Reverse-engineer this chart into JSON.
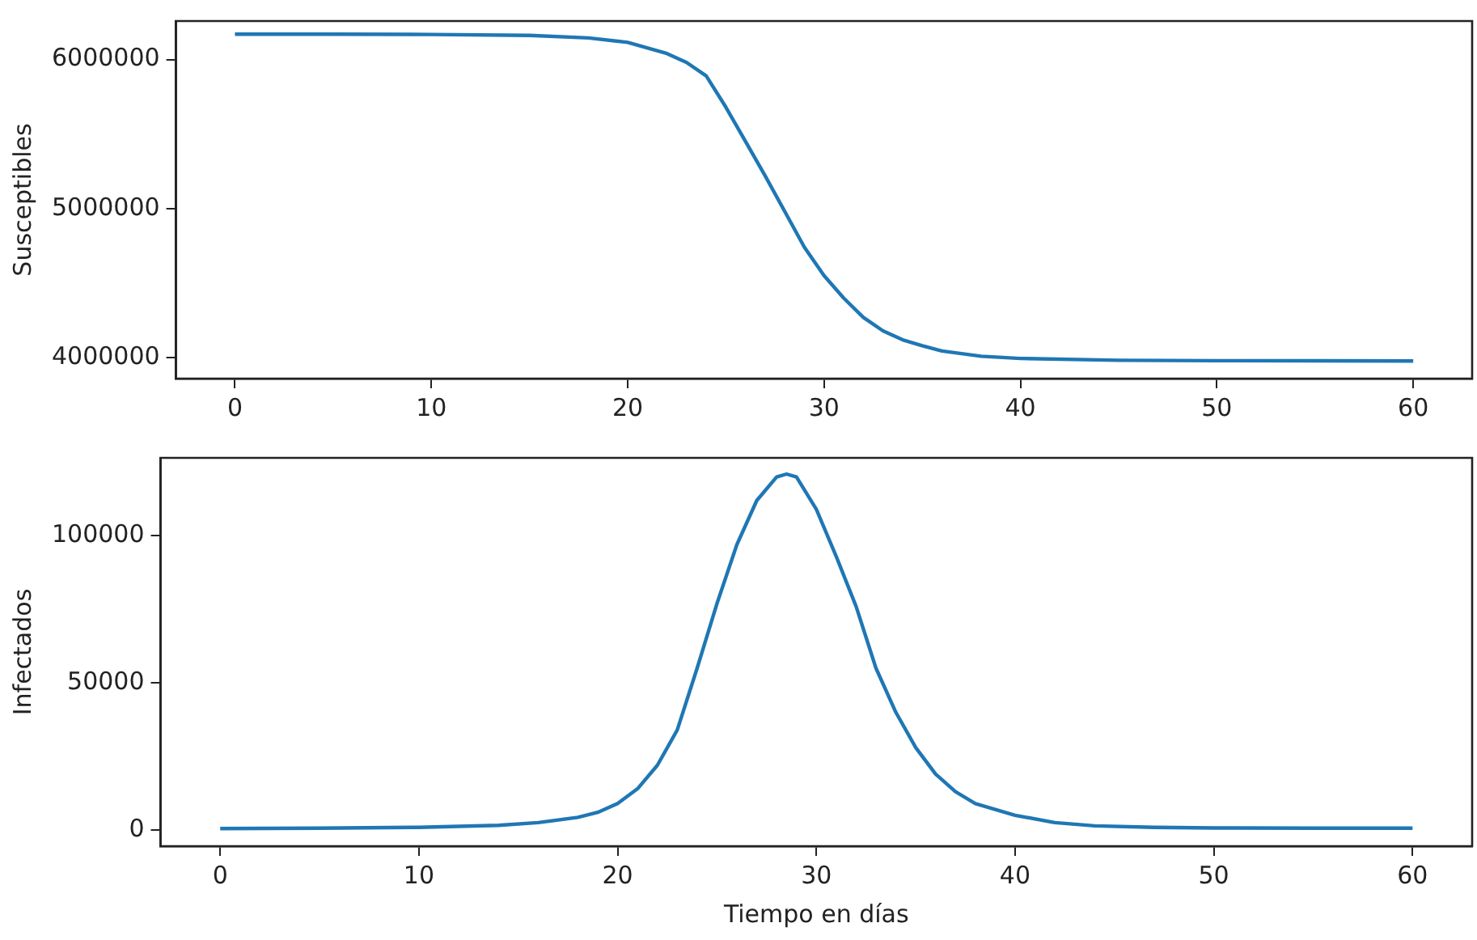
{
  "chart_data": [
    {
      "type": "line",
      "ylabel": "Susceptibles",
      "xlim": [
        -3,
        63
      ],
      "xticks": [
        0,
        10,
        20,
        30,
        40,
        50,
        60
      ],
      "ylim": [
        3860000,
        6258000
      ],
      "yticks": [
        4000000,
        5000000,
        6000000
      ],
      "x": [
        0,
        5,
        10,
        15,
        18,
        20,
        22,
        23,
        24,
        25,
        26,
        27,
        28,
        29,
        30,
        31,
        32,
        33,
        34,
        35,
        36,
        38,
        40,
        45,
        50,
        55,
        60
      ],
      "series": [
        {
          "color": "#1f77b4",
          "values": [
            6170000,
            6170000,
            6168000,
            6162000,
            6145000,
            6115000,
            6040000,
            5980000,
            5890000,
            5680000,
            5450000,
            5220000,
            4980000,
            4740000,
            4550000,
            4400000,
            4270000,
            4180000,
            4120000,
            4080000,
            4045000,
            4010000,
            3995000,
            3983000,
            3980000,
            3979000,
            3978000
          ]
        }
      ]
    },
    {
      "type": "line",
      "ylabel": "Infectados",
      "xlabel": "Tiempo en días",
      "xlim": [
        -3,
        63
      ],
      "xticks": [
        0,
        10,
        20,
        30,
        40,
        50,
        60
      ],
      "ylim": [
        -5500,
        126500
      ],
      "yticks": [
        0,
        50000,
        100000
      ],
      "x": [
        0,
        5,
        10,
        14,
        16,
        18,
        19,
        20,
        21,
        22,
        23,
        24,
        25,
        26,
        27,
        28,
        28.5,
        29,
        30,
        31,
        32,
        33,
        34,
        35,
        36,
        37,
        38,
        40,
        42,
        44,
        47,
        50,
        55,
        60
      ],
      "series": [
        {
          "color": "#1f77b4",
          "values": [
            500,
            600,
            900,
            1600,
            2500,
            4300,
            6000,
            9000,
            14000,
            22000,
            34000,
            55000,
            77000,
            97000,
            112000,
            120000,
            121000,
            120000,
            109000,
            93000,
            76000,
            55000,
            40000,
            28000,
            19000,
            13000,
            9000,
            5000,
            2500,
            1400,
            900,
            700,
            600,
            600
          ]
        }
      ]
    }
  ]
}
